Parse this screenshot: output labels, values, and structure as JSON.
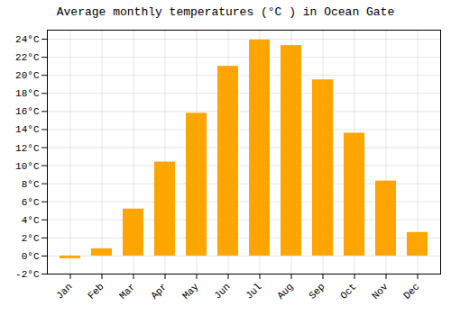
{
  "chart_data": {
    "type": "bar",
    "title": "Average monthly temperatures (°C ) in Ocean Gate",
    "categories": [
      "Jan",
      "Feb",
      "Mar",
      "Apr",
      "May",
      "Jun",
      "Jul",
      "Aug",
      "Sep",
      "Oct",
      "Nov",
      "Dec"
    ],
    "values": [
      -0.3,
      0.8,
      5.2,
      10.4,
      15.8,
      21.0,
      23.9,
      23.3,
      19.5,
      13.6,
      8.3,
      2.6
    ],
    "color": "#FFA500",
    "ylim": [
      -2,
      25
    ],
    "yticks": [
      {
        "value": -2,
        "label": "-2°C"
      },
      {
        "value": 0,
        "label": "0°C"
      },
      {
        "value": 2,
        "label": "2°C"
      },
      {
        "value": 4,
        "label": "4°C"
      },
      {
        "value": 6,
        "label": "6°C"
      },
      {
        "value": 8,
        "label": "8°C"
      },
      {
        "value": 10,
        "label": "10°C"
      },
      {
        "value": 12,
        "label": "12°C"
      },
      {
        "value": 14,
        "label": "14°C"
      },
      {
        "value": 16,
        "label": "16°C"
      },
      {
        "value": 18,
        "label": "18°C"
      },
      {
        "value": 20,
        "label": "20°C"
      },
      {
        "value": 22,
        "label": "22°C"
      },
      {
        "value": 24,
        "label": "24°C"
      }
    ],
    "grid": true
  }
}
